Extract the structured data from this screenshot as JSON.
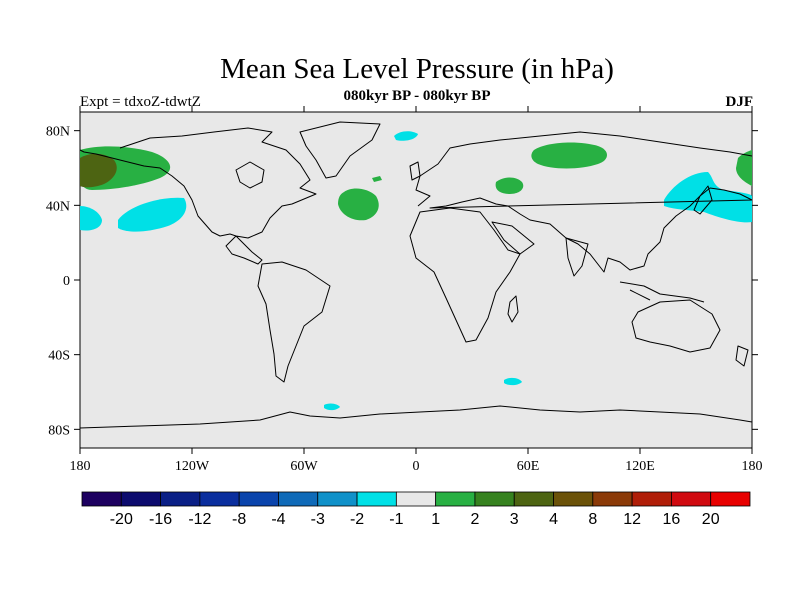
{
  "map": {
    "title": "Mean Sea Level Pressure (in hPa)",
    "subtitle": "080kyr BP - 080kyr BP",
    "left_label": "Expt = tdxoZ-tdwtZ",
    "right_label": "DJF",
    "projection": "cylindrical equidistant",
    "lon_range": [
      -180,
      180
    ],
    "lat_range": [
      -90,
      90
    ],
    "background_color": "#e8e8e8",
    "coastline_color": "#000000",
    "x_ticks": [
      "180",
      "120W",
      "60W",
      "0",
      "60E",
      "120E",
      "180"
    ],
    "y_ticks": [
      "80N",
      "40N",
      "0",
      "40S",
      "80S"
    ]
  },
  "colorbar": {
    "labels": [
      "-20",
      "-16",
      "-12",
      "-8",
      "-4",
      "-3",
      "-2",
      "-1",
      "1",
      "2",
      "3",
      "4",
      "8",
      "12",
      "16",
      "20"
    ],
    "colors": [
      "#1d0060",
      "#0c0b6e",
      "#0a1f86",
      "#0a2e9e",
      "#0a44ac",
      "#0f6ab8",
      "#1091c9",
      "#00e0e6",
      "#e8e8e8",
      "#28b043",
      "#36821f",
      "#4d6412",
      "#6b5209",
      "#8b3a08",
      "#b01e08",
      "#d00a10",
      "#e80000"
    ]
  },
  "anomalies": [
    {
      "name": "alaska-positive",
      "sign": "positive",
      "level": "2",
      "color": "#28b043"
    },
    {
      "name": "alaska-core",
      "sign": "positive",
      "level": "4",
      "color": "#4d6412"
    },
    {
      "name": "north-atlantic-positive",
      "sign": "positive",
      "level": "2",
      "color": "#28b043"
    },
    {
      "name": "siberia-positive",
      "sign": "positive",
      "level": "2",
      "color": "#28b043"
    },
    {
      "name": "north-pacific-negative",
      "sign": "negative",
      "level": "-1",
      "color": "#00e0e6"
    },
    {
      "name": "west-pacific-negative",
      "sign": "negative",
      "level": "-1",
      "color": "#00e0e6"
    },
    {
      "name": "southern-ocean-negative",
      "sign": "negative",
      "level": "-1",
      "color": "#00e0e6"
    }
  ]
}
